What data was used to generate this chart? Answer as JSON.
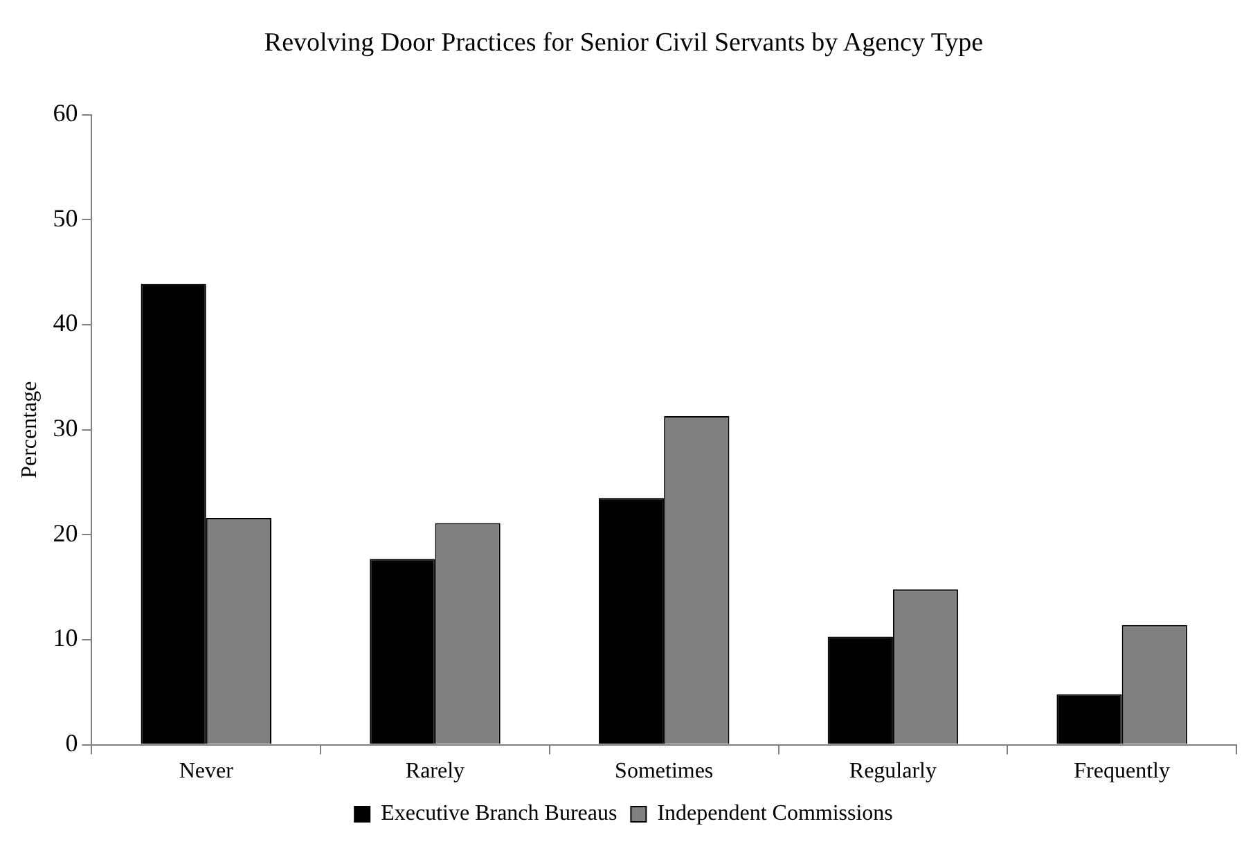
{
  "chart_data": {
    "type": "bar",
    "title": "Revolving Door Practices for Senior Civil Servants by Agency Type",
    "ylabel": "Percentage",
    "categories": [
      "Never",
      "Rarely",
      "Sometimes",
      "Regularly",
      "Frequently"
    ],
    "series": [
      {
        "name": "Executive Branch Bureaus",
        "color": "#000000",
        "values": [
          43.9,
          17.7,
          23.5,
          10.3,
          4.8
        ]
      },
      {
        "name": "Independent Commissions",
        "color": "#808080",
        "values": [
          21.6,
          21.1,
          31.3,
          14.8,
          11.4
        ]
      }
    ],
    "ylim": [
      0,
      60
    ],
    "yticks": [
      0,
      10,
      20,
      30,
      40,
      50,
      60
    ],
    "grid": false,
    "legend": "bottom"
  }
}
